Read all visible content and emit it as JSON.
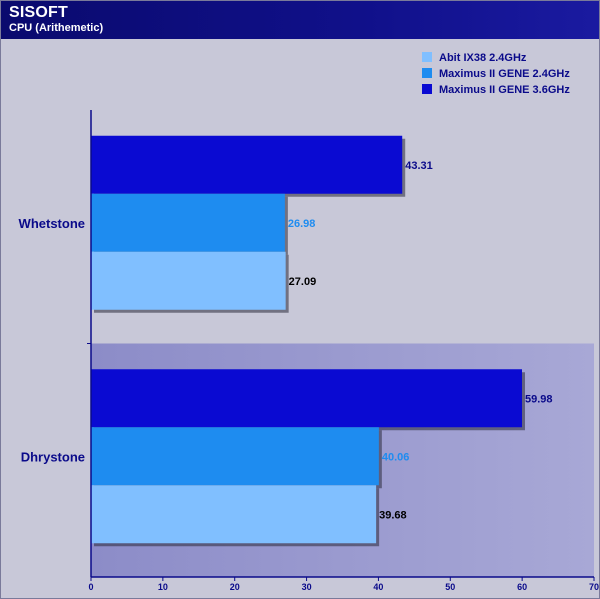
{
  "header": {
    "title": "SISOFT",
    "subtitle": "CPU (Arithemetic)"
  },
  "chart_data": {
    "type": "bar",
    "orientation": "horizontal",
    "categories": [
      "Whetstone",
      "Dhrystone"
    ],
    "series": [
      {
        "name": "Abit IX38 2.4GHz",
        "color": "#80bfff",
        "label_color": "#000000",
        "values": [
          27.09,
          39.68
        ]
      },
      {
        "name": "Maximus II GENE 2.4GHz",
        "color": "#1e8cf0",
        "label_color": "#1e8cf0",
        "values": [
          26.98,
          40.06
        ]
      },
      {
        "name": "Maximus II GENE 3.6GHz",
        "color": "#0a0ad2",
        "label_color": "#0a0a8a",
        "values": [
          43.31,
          59.98
        ]
      }
    ],
    "xlim": [
      0,
      70
    ],
    "xticks": [
      0,
      10,
      20,
      30,
      40,
      50,
      60,
      70
    ],
    "legend": "top-right",
    "grid": false
  }
}
